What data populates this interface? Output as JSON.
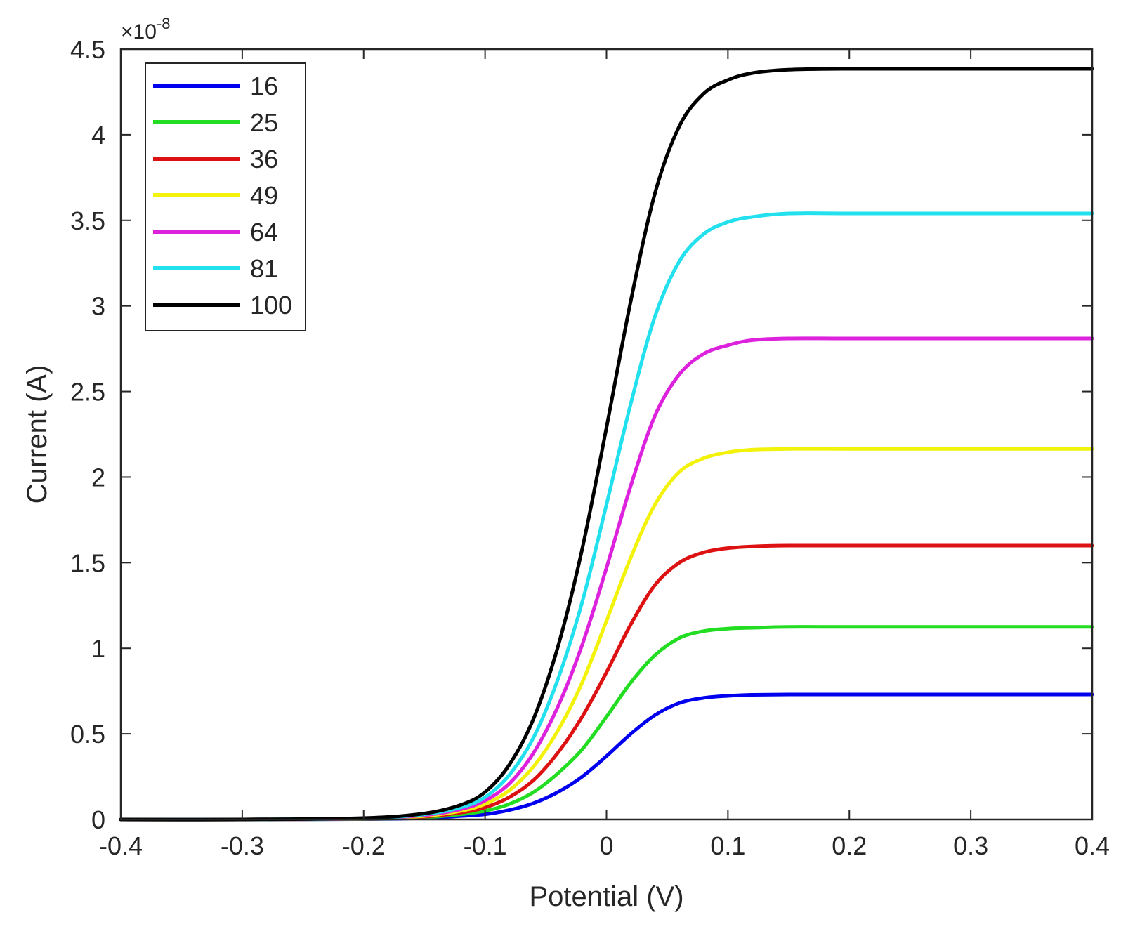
{
  "chart_data": {
    "type": "line",
    "title": "",
    "xlabel": "Potential (V)",
    "ylabel": "Current (A)",
    "y_multiplier": "×10",
    "y_multiplier_exp": "-8",
    "xlim": [
      -0.4,
      0.4
    ],
    "ylim": [
      0,
      4.5
    ],
    "xticks": [
      -0.4,
      -0.3,
      -0.2,
      -0.1,
      0,
      0.1,
      0.2,
      0.3,
      0.4
    ],
    "xtick_labels": [
      "-0.4",
      "-0.3",
      "-0.2",
      "-0.1",
      "0",
      "0.1",
      "0.2",
      "0.3",
      "0.4"
    ],
    "yticks": [
      0,
      0.5,
      1,
      1.5,
      2,
      2.5,
      3,
      3.5,
      4,
      4.5
    ],
    "ytick_labels": [
      "0",
      "0.5",
      "1",
      "1.5",
      "2",
      "2.5",
      "3",
      "3.5",
      "4",
      "4.5"
    ],
    "grid": false,
    "legend_position": "top-left",
    "x": [
      -0.4,
      -0.3,
      -0.2,
      -0.15,
      -0.12,
      -0.1,
      -0.08,
      -0.06,
      -0.04,
      -0.02,
      0,
      0.02,
      0.04,
      0.06,
      0.08,
      0.1,
      0.12,
      0.15,
      0.2,
      0.3,
      0.4
    ],
    "series": [
      {
        "name": "16",
        "color": "#0000ee",
        "values": [
          0,
          0,
          0.002,
          0.008,
          0.02,
          0.03,
          0.055,
          0.095,
          0.16,
          0.25,
          0.37,
          0.5,
          0.61,
          0.68,
          0.71,
          0.722,
          0.728,
          0.73,
          0.73,
          0.73,
          0.73
        ]
      },
      {
        "name": "25",
        "color": "#22dd22",
        "values": [
          0,
          0,
          0.003,
          0.012,
          0.03,
          0.05,
          0.09,
          0.16,
          0.27,
          0.41,
          0.6,
          0.8,
          0.96,
          1.06,
          1.1,
          1.115,
          1.12,
          1.125,
          1.125,
          1.125,
          1.125
        ]
      },
      {
        "name": "36",
        "color": "#dd1111",
        "values": [
          0,
          0,
          0.004,
          0.016,
          0.04,
          0.07,
          0.13,
          0.23,
          0.39,
          0.6,
          0.86,
          1.14,
          1.37,
          1.5,
          1.56,
          1.585,
          1.595,
          1.6,
          1.6,
          1.6,
          1.6
        ]
      },
      {
        "name": "49",
        "color": "#f2f20a",
        "values": [
          0,
          0,
          0.005,
          0.02,
          0.05,
          0.09,
          0.17,
          0.31,
          0.52,
          0.8,
          1.16,
          1.53,
          1.84,
          2.03,
          2.11,
          2.145,
          2.16,
          2.165,
          2.165,
          2.165,
          2.165
        ]
      },
      {
        "name": "64",
        "color": "#dd22dd",
        "values": [
          0,
          0,
          0.006,
          0.025,
          0.06,
          0.11,
          0.21,
          0.39,
          0.66,
          1.02,
          1.47,
          1.95,
          2.36,
          2.6,
          2.72,
          2.77,
          2.8,
          2.81,
          2.81,
          2.81,
          2.81
        ]
      },
      {
        "name": "81",
        "color": "#22e0ee",
        "values": [
          0,
          0,
          0.007,
          0.03,
          0.07,
          0.13,
          0.26,
          0.48,
          0.82,
          1.27,
          1.84,
          2.43,
          2.94,
          3.26,
          3.42,
          3.49,
          3.52,
          3.54,
          3.54,
          3.54,
          3.54
        ]
      },
      {
        "name": "100",
        "color": "#000000",
        "values": [
          0,
          0,
          0.008,
          0.035,
          0.085,
          0.16,
          0.32,
          0.59,
          1.01,
          1.58,
          2.29,
          3.03,
          3.66,
          4.05,
          4.24,
          4.32,
          4.36,
          4.38,
          4.385,
          4.385,
          4.385
        ]
      }
    ]
  }
}
